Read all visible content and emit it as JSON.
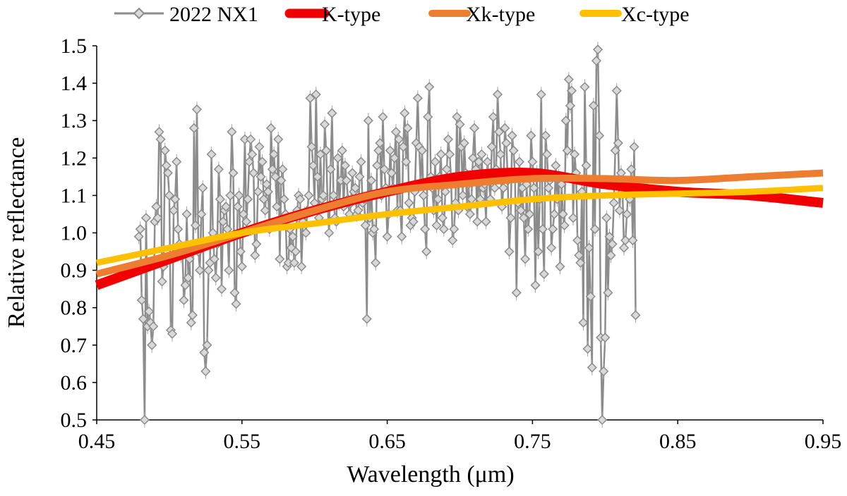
{
  "chart_data": {
    "type": "line",
    "title": "",
    "xlabel": "Wavelength (μm)",
    "ylabel": "Relative reflectance",
    "xlim": [
      0.45,
      0.95
    ],
    "ylim": [
      0.5,
      1.5
    ],
    "xticks": [
      "0.45",
      "0.55",
      "0.65",
      "0.75",
      "0.85",
      "0.95"
    ],
    "yticks": [
      "0.5",
      "0.6",
      "0.7",
      "0.8",
      "0.9",
      "1.0",
      "1.1",
      "1.2",
      "1.3",
      "1.4",
      "1.5"
    ],
    "grid": false,
    "legend_position": "top",
    "series": [
      {
        "name": "2022 NX1",
        "color": "#8c8c8c",
        "marker": "diamond",
        "x_start": 0.479,
        "x_step": 0.001,
        "y": [
          0.99,
          1.01,
          0.82,
          0.77,
          0.46,
          1.04,
          0.75,
          0.79,
          0.76,
          0.7,
          0.75,
          1.03,
          1.07,
          1.04,
          1.27,
          1.25,
          0.87,
          0.91,
          1.22,
          1.18,
          1.16,
          1.1,
          0.74,
          0.73,
          1.06,
          1.09,
          1.19,
          1.01,
          0.97,
          0.94,
          0.95,
          0.82,
          0.86,
          1.05,
          0.88,
          0.93,
          0.76,
          0.78,
          1.28,
          1.02,
          1.33,
          0.95,
          0.9,
          1.05,
          1.12,
          0.68,
          0.63,
          0.7,
          0.9,
          0.92,
          1.21,
          1.0,
          0.93,
          0.88,
          0.97,
          1.17,
          1.09,
          0.85,
          1.03,
          1.06,
          1.07,
          1.01,
          0.9,
          1.1,
          1.27,
          1.16,
          0.84,
          0.81,
          1.07,
          1.1,
          0.95,
          0.91,
          1.05,
          1.25,
          1.03,
          1.09,
          1.19,
          1.25,
          1.21,
          1.16,
          0.94,
          0.97,
          1.11,
          1.23,
          1.15,
          1.19,
          1.09,
          1.06,
          1.13,
          1.11,
          1.01,
          1.28,
          1.17,
          1.21,
          1.15,
          1.07,
          1.25,
          0.93,
          1.14,
          1.17,
          1.09,
          1.05,
          0.91,
          0.92,
          1.01,
          0.96,
          0.99,
          0.92,
          0.95,
          1.06,
          1.1,
          1.09,
          0.91,
          1.03,
          1.05,
          1.0,
          1.06,
          1.1,
          1.36,
          1.23,
          1.18,
          1.08,
          1.37,
          1.15,
          1.04,
          1.21,
          1.09,
          1.1,
          1.29,
          1.22,
          1.07,
          1.0,
          1.17,
          1.32,
          1.1,
          1.04,
          1.03,
          1.2,
          1.08,
          1.14,
          1.22,
          1.07,
          1.18,
          1.14,
          1.09,
          1.05,
          1.08,
          1.16,
          1.11,
          1.12,
          1.05,
          1.06,
          1.15,
          1.19,
          1.08,
          1.09,
          1.02,
          0.77,
          1.3,
          1.04,
          1.14,
          1.0,
          1.01,
          0.92,
          1.18,
          1.22,
          1.24,
          1.1,
          1.31,
          1.17,
          1.12,
          0.99,
          1.05,
          1.22,
          1.16,
          1.12,
          1.2,
          1.27,
          1.06,
          1.25,
          1.06,
          0.99,
          1.23,
          1.32,
          1.19,
          1.28,
          1.08,
          1.02,
          1.04,
          1.03,
          1.11,
          1.24,
          1.36,
          1.23,
          1.13,
          1.22,
          1.1,
          1.01,
          0.95,
          1.31,
          1.39,
          1.15,
          1.12,
          1.06,
          1.19,
          1.02,
          1.09,
          1.15,
          1.21,
          1.04,
          1.01,
          1.11,
          1.17,
          1.25,
          1.21,
          1.14,
          0.98,
          1.01,
          1.08,
          1.31,
          1.06,
          1.29,
          1.23,
          1.1,
          1.24,
          1.16,
          1.07,
          1.13,
          1.05,
          1.09,
          1.2,
          1.28,
          1.17,
          1.03,
          1.19,
          1.09,
          1.21,
          1.12,
          1.13,
          1.03,
          1.19,
          1.14,
          1.09,
          1.23,
          1.31,
          1.12,
          1.17,
          1.37,
          1.27,
          1.21,
          1.07,
          1.12,
          1.28,
          1.24,
          1.14,
          0.95,
          1.04,
          1.26,
          1.22,
          1.15,
          0.84,
          1.08,
          1.19,
          1.06,
          1.12,
          1.04,
          0.93,
          1.13,
          1.01,
          1.05,
          1.26,
          1.19,
          1.12,
          0.86,
          1.16,
          0.95,
          1.09,
          1.37,
          1.01,
          0.89,
          1.26,
          1.21,
          1.12,
          1.14,
          0.96,
          1.01,
          1.05,
          1.18,
          1.09,
          1.15,
          0.91,
          1.13,
          1.05,
          1.02,
          1.3,
          1.22,
          1.41,
          1.34,
          1.38,
          1.04,
          1.21,
          1.16,
          0.98,
          0.94,
          0.92,
          1.11,
          0.76,
          1.39,
          1.18,
          0.69,
          0.96,
          0.83,
          0.64,
          1.34,
          1.01,
          1.46,
          1.49,
          1.26,
          0.72,
          0.46,
          0.63,
          0.72,
          1.04,
          0.84,
          0.99,
          0.94,
          0.97,
          1.08,
          1.22,
          1.38,
          1.24,
          1.06,
          1.16,
          1.11,
          0.96,
          0.98,
          1.05,
          1.12,
          1.09,
          1.17,
          0.98,
          1.23,
          0.78
        ]
      },
      {
        "name": "K-type",
        "color": "#f00000",
        "x": [
          0.45,
          0.5,
          0.55,
          0.6,
          0.65,
          0.7,
          0.75,
          0.8,
          0.85,
          0.9,
          0.95
        ],
        "y": [
          0.86,
          0.93,
          1.0,
          1.06,
          1.11,
          1.15,
          1.16,
          1.13,
          1.11,
          1.1,
          1.08
        ]
      },
      {
        "name": "Xk-type",
        "color": "#ed7d31",
        "x": [
          0.45,
          0.5,
          0.55,
          0.6,
          0.65,
          0.7,
          0.75,
          0.8,
          0.85,
          0.9,
          0.95
        ],
        "y": [
          0.89,
          0.94,
          1.0,
          1.06,
          1.11,
          1.13,
          1.145,
          1.145,
          1.14,
          1.15,
          1.16
        ]
      },
      {
        "name": "Xc-type",
        "color": "#ffc000",
        "x": [
          0.45,
          0.5,
          0.55,
          0.6,
          0.65,
          0.7,
          0.75,
          0.8,
          0.85,
          0.9,
          0.95
        ],
        "y": [
          0.92,
          0.96,
          1.0,
          1.025,
          1.05,
          1.07,
          1.09,
          1.1,
          1.105,
          1.11,
          1.12
        ]
      }
    ]
  }
}
